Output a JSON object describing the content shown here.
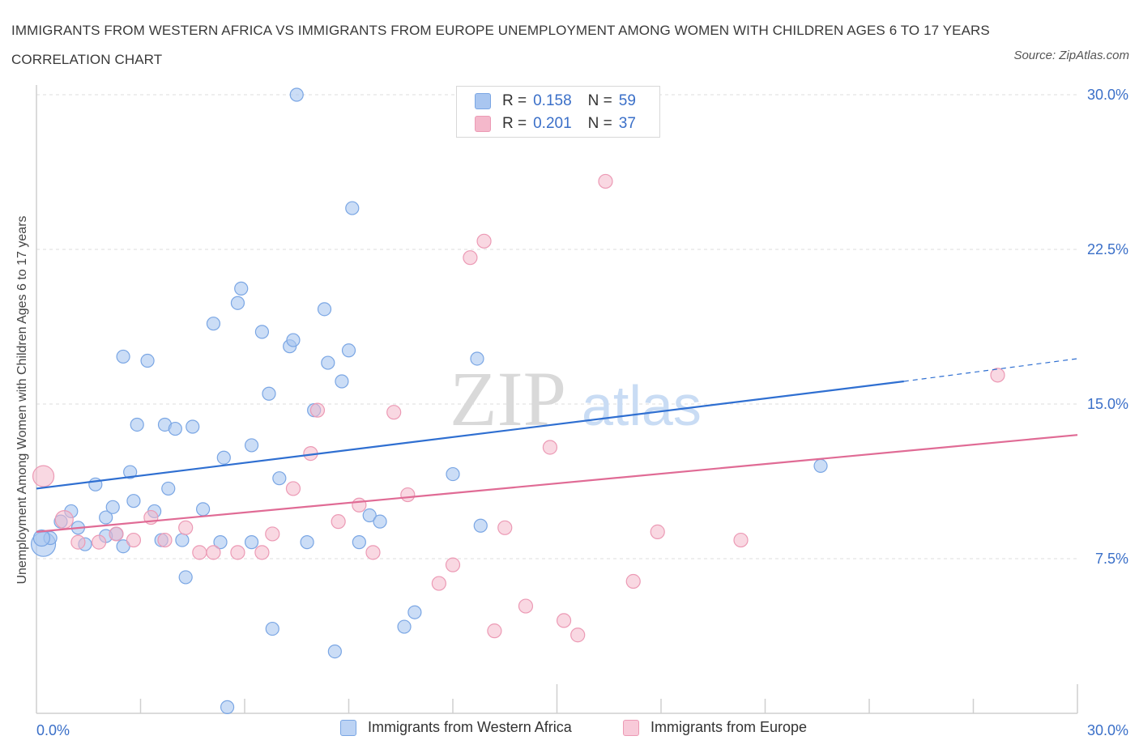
{
  "title": "IMMIGRANTS FROM WESTERN AFRICA VS IMMIGRANTS FROM EUROPE UNEMPLOYMENT AMONG WOMEN WITH CHILDREN AGES 6 TO 17 YEARS CORRELATION CHART",
  "source": "Source: ZipAtlas.com",
  "watermark": {
    "zip": "ZIP",
    "atlas": "atlas"
  },
  "colors": {
    "blue_fill": "#a9c6f0",
    "blue_stroke": "#7aa6e4",
    "blue_line": "#2f6fd1",
    "pink_fill": "#f4b8cb",
    "pink_stroke": "#ec9ab5",
    "pink_line": "#e06b95",
    "tick_text": "#3a6fc8",
    "grid": "#dddddd"
  },
  "legend_top": {
    "rows": [
      {
        "r_label": "R =",
        "r_value": "0.158",
        "n_label": "N =",
        "n_value": "59",
        "color": "#a9c6f0"
      },
      {
        "r_label": "R =",
        "r_value": "0.201",
        "n_label": "N =",
        "n_value": "37",
        "color": "#f4b8cb"
      }
    ]
  },
  "chart_data": {
    "type": "scatter",
    "title": "IMMIGRANTS FROM WESTERN AFRICA VS IMMIGRANTS FROM EUROPE UNEMPLOYMENT AMONG WOMEN WITH CHILDREN AGES 6 TO 17 YEARS CORRELATION CHART",
    "xlabel": "",
    "ylabel": "Unemployment Among Women with Children Ages 6 to 17 years",
    "xlim": [
      0,
      30
    ],
    "ylim": [
      0,
      30
    ],
    "x_tick_labels": [
      "0.0%",
      "30.0%"
    ],
    "y_tick_values": [
      7.5,
      15.0,
      22.5,
      30.0
    ],
    "y_tick_labels": [
      "7.5%",
      "15.0%",
      "22.5%",
      "30.0%"
    ],
    "grid": "horizontal dashed",
    "legend": "bottom",
    "series": [
      {
        "name": "Immigrants from Western Africa",
        "color": "#a9c6f0",
        "trend": {
          "x0": 0.0,
          "y0": 10.9,
          "x1": 25.0,
          "y1": 16.1,
          "dashed_to_x": 30.0,
          "dashed_to_y": 17.2
        },
        "points": [
          [
            0.2,
            8.2
          ],
          [
            0.4,
            8.5
          ],
          [
            0.7,
            9.3
          ],
          [
            1.0,
            9.8
          ],
          [
            1.2,
            9.0
          ],
          [
            1.4,
            8.2
          ],
          [
            1.7,
            11.1
          ],
          [
            2.0,
            9.5
          ],
          [
            2.2,
            10.0
          ],
          [
            2.3,
            8.7
          ],
          [
            2.5,
            8.1
          ],
          [
            2.5,
            17.3
          ],
          [
            2.7,
            11.7
          ],
          [
            2.8,
            10.3
          ],
          [
            2.9,
            14.0
          ],
          [
            3.2,
            17.1
          ],
          [
            3.4,
            9.8
          ],
          [
            3.6,
            8.4
          ],
          [
            3.7,
            14.0
          ],
          [
            3.8,
            10.9
          ],
          [
            4.0,
            13.8
          ],
          [
            4.2,
            8.4
          ],
          [
            4.3,
            6.6
          ],
          [
            4.5,
            13.9
          ],
          [
            4.8,
            9.9
          ],
          [
            5.1,
            18.9
          ],
          [
            5.3,
            8.3
          ],
          [
            5.4,
            12.4
          ],
          [
            5.5,
            0.3
          ],
          [
            5.8,
            19.9
          ],
          [
            5.9,
            20.6
          ],
          [
            6.2,
            13.0
          ],
          [
            6.2,
            8.3
          ],
          [
            6.5,
            18.5
          ],
          [
            6.7,
            15.5
          ],
          [
            6.8,
            4.1
          ],
          [
            7.0,
            11.4
          ],
          [
            7.3,
            17.8
          ],
          [
            7.4,
            18.1
          ],
          [
            7.5,
            30.0
          ],
          [
            7.8,
            8.3
          ],
          [
            8.0,
            14.7
          ],
          [
            8.3,
            19.6
          ],
          [
            8.4,
            17.0
          ],
          [
            8.6,
            3.0
          ],
          [
            8.8,
            16.1
          ],
          [
            9.0,
            17.6
          ],
          [
            9.1,
            24.5
          ],
          [
            9.3,
            8.3
          ],
          [
            9.6,
            9.6
          ],
          [
            9.9,
            9.3
          ],
          [
            10.6,
            4.2
          ],
          [
            10.9,
            4.9
          ],
          [
            12.0,
            11.6
          ],
          [
            12.7,
            17.2
          ],
          [
            12.8,
            9.1
          ],
          [
            22.6,
            12.0
          ],
          [
            0.15,
            8.5
          ],
          [
            2.0,
            8.6
          ]
        ]
      },
      {
        "name": "Immigrants from Europe",
        "color": "#f4b8cb",
        "trend": {
          "x0": 0.0,
          "y0": 8.8,
          "x1": 30.0,
          "y1": 13.5
        },
        "points": [
          [
            0.2,
            11.5
          ],
          [
            0.8,
            9.4
          ],
          [
            1.2,
            8.3
          ],
          [
            1.8,
            8.3
          ],
          [
            2.3,
            8.7
          ],
          [
            2.8,
            8.4
          ],
          [
            3.3,
            9.5
          ],
          [
            3.7,
            8.4
          ],
          [
            4.3,
            9.0
          ],
          [
            4.7,
            7.8
          ],
          [
            5.1,
            7.8
          ],
          [
            5.8,
            7.8
          ],
          [
            6.5,
            7.8
          ],
          [
            6.8,
            8.7
          ],
          [
            7.4,
            10.9
          ],
          [
            7.9,
            12.6
          ],
          [
            8.1,
            14.7
          ],
          [
            8.7,
            9.3
          ],
          [
            9.3,
            10.1
          ],
          [
            9.7,
            7.8
          ],
          [
            10.3,
            14.6
          ],
          [
            10.7,
            10.6
          ],
          [
            11.6,
            6.3
          ],
          [
            12.0,
            7.2
          ],
          [
            12.5,
            22.1
          ],
          [
            12.9,
            22.9
          ],
          [
            13.2,
            4.0
          ],
          [
            13.5,
            9.0
          ],
          [
            14.1,
            5.2
          ],
          [
            14.8,
            12.9
          ],
          [
            15.2,
            4.5
          ],
          [
            15.6,
            3.8
          ],
          [
            16.4,
            25.8
          ],
          [
            17.2,
            6.4
          ],
          [
            17.9,
            8.8
          ],
          [
            20.3,
            8.4
          ],
          [
            27.7,
            16.4
          ]
        ]
      }
    ]
  },
  "legend_bottom": [
    {
      "label": "Immigrants from Western Africa",
      "color": "#a9c6f0"
    },
    {
      "label": "Immigrants from Europe",
      "color": "#f4b8cb"
    }
  ]
}
